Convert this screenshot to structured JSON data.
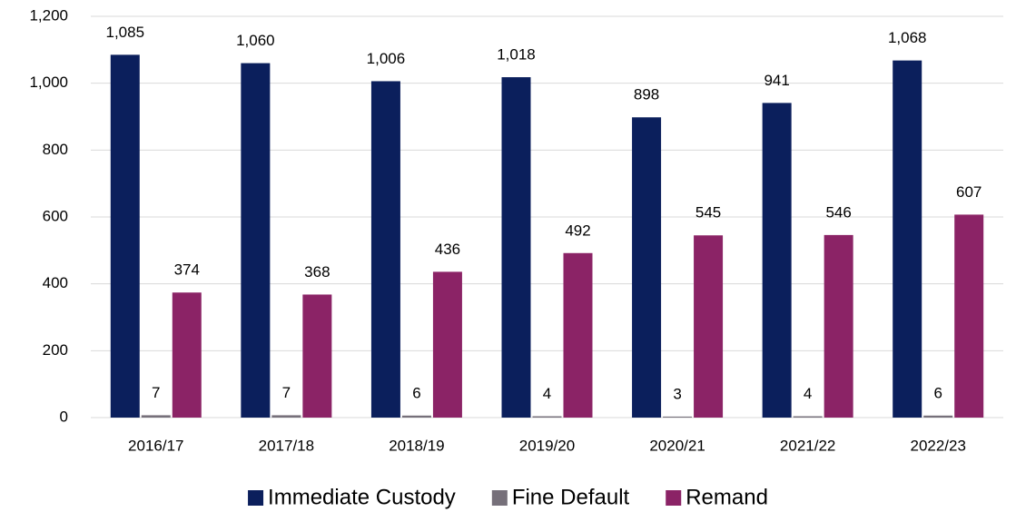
{
  "chart_data": {
    "type": "bar",
    "categories": [
      "2016/17",
      "2017/18",
      "2018/19",
      "2019/20",
      "2020/21",
      "2021/22",
      "2022/23"
    ],
    "series": [
      {
        "name": "Immediate Custody",
        "color": "#0b1f5c",
        "values": [
          1085,
          1060,
          1006,
          1018,
          898,
          941,
          1068
        ],
        "value_labels": [
          "1,085",
          "1,060",
          "1,006",
          "1,018",
          "898",
          "941",
          "1,068"
        ]
      },
      {
        "name": "Fine Default",
        "color": "#76707a",
        "values": [
          7,
          7,
          6,
          4,
          3,
          4,
          6
        ]
      },
      {
        "name": "Remand",
        "color": "#8b2366",
        "values": [
          374,
          368,
          436,
          492,
          545,
          546,
          607
        ]
      }
    ],
    "ylim": [
      0,
      1200
    ],
    "yticks": [
      0,
      200,
      400,
      600,
      800,
      {
        "value": 1000,
        "label": "1,000"
      },
      {
        "value": 1200,
        "label": "1,200"
      }
    ],
    "grid": true,
    "legend": "bottom"
  }
}
